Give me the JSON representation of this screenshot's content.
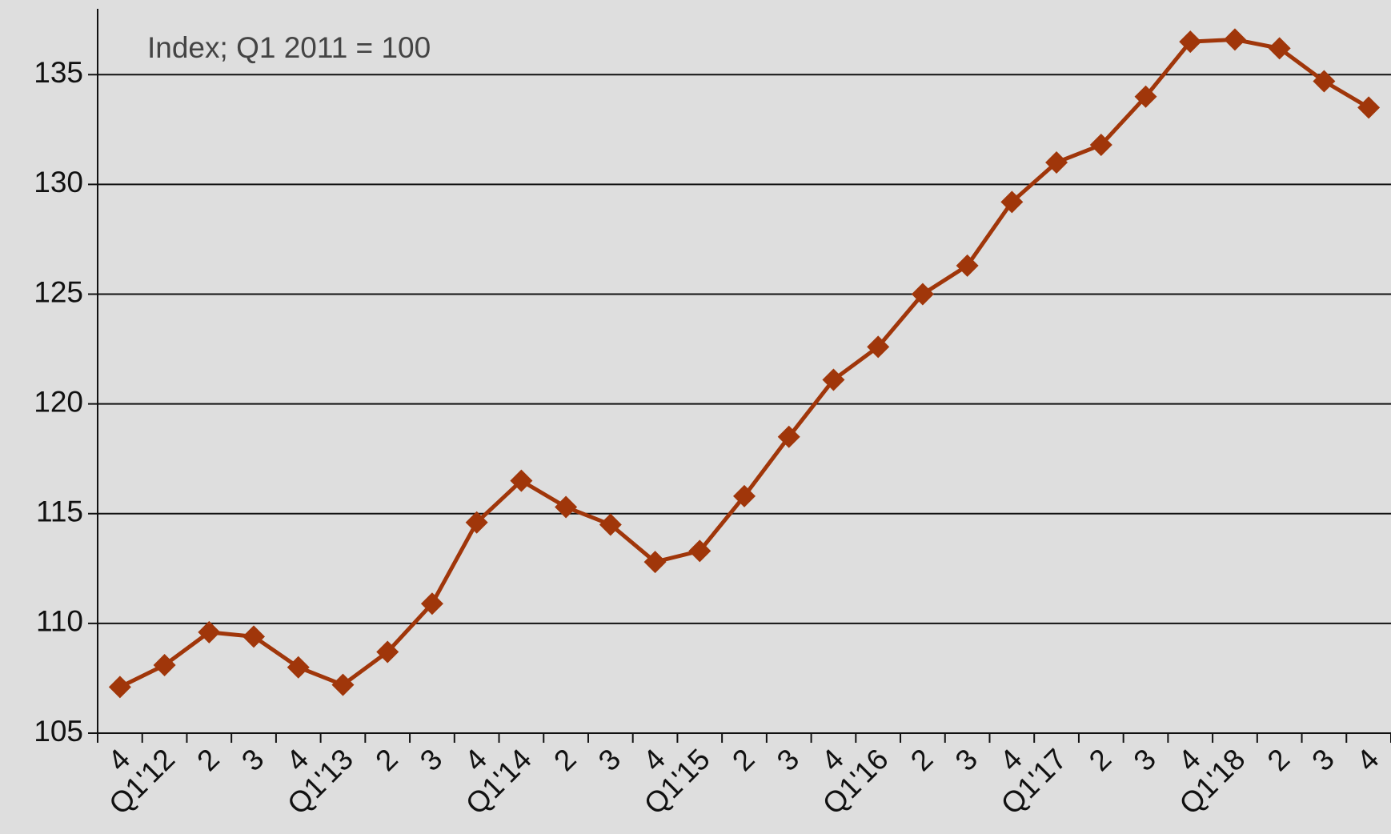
{
  "chart_data": {
    "type": "line",
    "annotation": "Index; Q1 2011 = 100",
    "categories": [
      "4",
      "Q1'12",
      "2",
      "3",
      "4",
      "Q1'13",
      "2",
      "3",
      "4",
      "Q1'14",
      "2",
      "3",
      "4",
      "Q1'15",
      "2",
      "3",
      "4",
      "Q1'16",
      "2",
      "3",
      "4",
      "Q1'17",
      "2",
      "3",
      "4",
      "Q1'18",
      "2",
      "3",
      "4"
    ],
    "series": [
      {
        "name": "Index",
        "color": "#a0360a",
        "values": [
          107.1,
          108.1,
          109.6,
          109.4,
          108.0,
          107.2,
          108.7,
          110.9,
          114.6,
          116.5,
          115.3,
          114.5,
          112.8,
          113.3,
          115.8,
          118.5,
          121.1,
          122.6,
          125.0,
          126.3,
          129.2,
          131.0,
          131.8,
          134.0,
          136.5,
          136.6,
          136.2,
          134.7,
          133.5
        ]
      }
    ],
    "ylim": [
      105,
      138
    ],
    "yticks": [
      105,
      110,
      115,
      120,
      125,
      130,
      135
    ],
    "grid": true
  }
}
